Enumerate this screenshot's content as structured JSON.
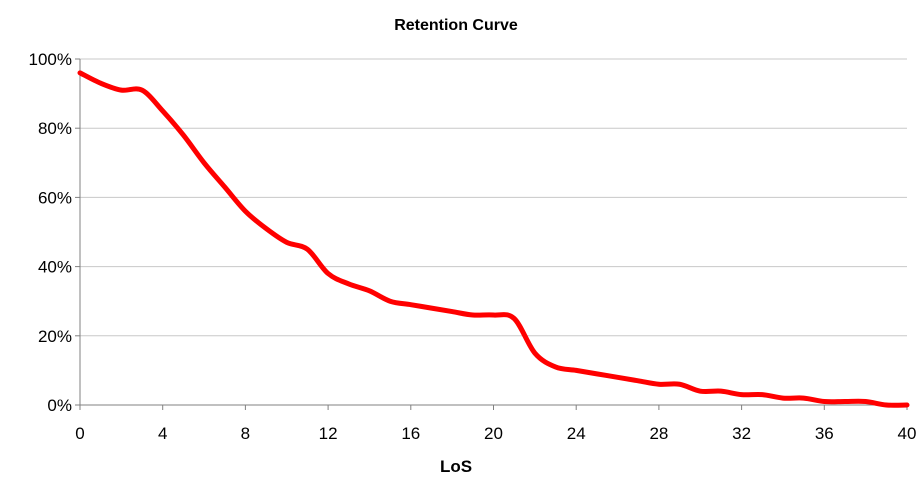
{
  "chart_data": {
    "type": "line",
    "title": "Retention Curve",
    "xlabel": "LoS",
    "ylabel": "",
    "xlim": [
      0,
      40
    ],
    "ylim": [
      0,
      100
    ],
    "x_ticks": [
      0,
      4,
      8,
      12,
      16,
      20,
      24,
      28,
      32,
      36,
      40
    ],
    "y_ticks": [
      0,
      20,
      40,
      60,
      80,
      100
    ],
    "y_tick_labels": [
      "0%",
      "20%",
      "40%",
      "60%",
      "80%",
      "100%"
    ],
    "grid": true,
    "legend": "none",
    "colors": {
      "line": "#ff0000",
      "grid": "#c8c8c8",
      "axis": "#808080"
    },
    "series": [
      {
        "x": [
          0,
          1,
          2,
          3,
          4,
          5,
          6,
          7,
          8,
          9,
          10,
          11,
          12,
          13,
          14,
          15,
          16,
          17,
          18,
          19,
          20,
          21,
          22,
          23,
          24,
          25,
          26,
          27,
          28,
          29,
          30,
          31,
          32,
          33,
          34,
          35,
          36,
          37,
          38,
          39,
          40
        ],
        "y": [
          96,
          93,
          91,
          91,
          85,
          78,
          70,
          63,
          56,
          51,
          47,
          45,
          38,
          35,
          33,
          30,
          29,
          28,
          27,
          26,
          26,
          25,
          15,
          11,
          10,
          9,
          8,
          7,
          6,
          6,
          4,
          4,
          3,
          3,
          2,
          2,
          1,
          1,
          1,
          0,
          0
        ]
      }
    ]
  }
}
